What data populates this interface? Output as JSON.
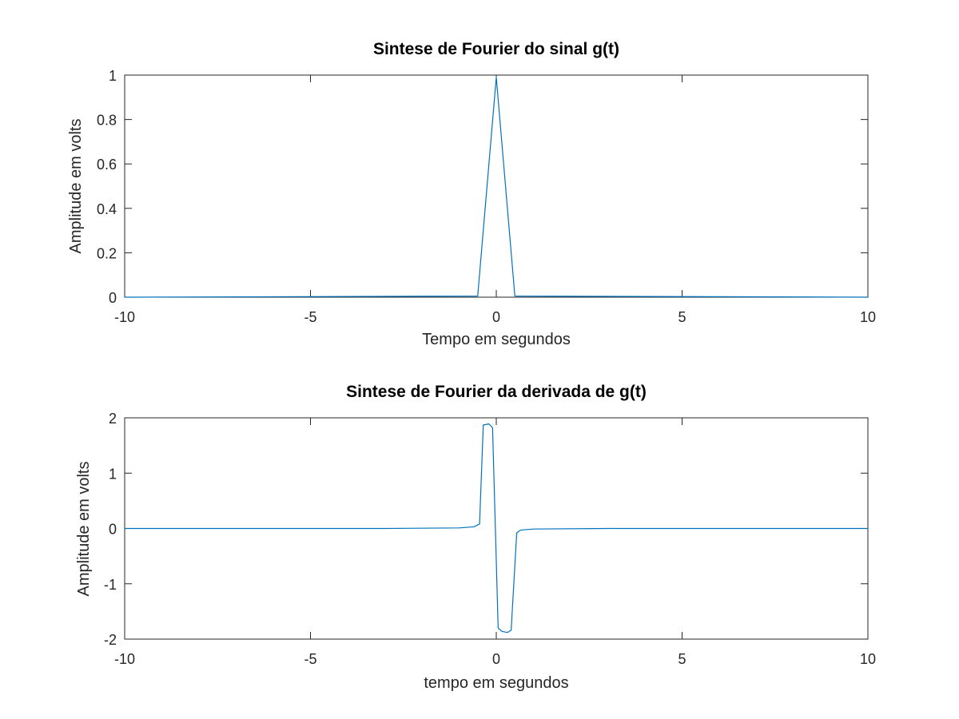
{
  "colors": {
    "line": "#0072BD",
    "axes": "#262626",
    "background": "#ffffff"
  },
  "chart_data": [
    {
      "type": "line",
      "title": "Sintese de Fourier do sinal g(t)",
      "xlabel": "Tempo em segundos",
      "ylabel": "Amplitude em  volts",
      "xlim": [
        -10,
        10
      ],
      "ylim": [
        0,
        1
      ],
      "xticks": [
        -10,
        -5,
        0,
        5,
        10
      ],
      "yticks": [
        0,
        0.2,
        0.4,
        0.6,
        0.8,
        1
      ],
      "xticklabels": [
        "-10",
        "-5",
        "0",
        "5",
        "10"
      ],
      "yticklabels": [
        "0",
        "0.2",
        "0.4",
        "0.6",
        "0.8",
        "1"
      ],
      "grid": false,
      "series": [
        {
          "x": [
            -10,
            -0.5,
            0,
            0.5,
            10
          ],
          "y": [
            0,
            0.005,
            0.99,
            0.005,
            0
          ]
        }
      ]
    },
    {
      "type": "line",
      "title": "Sintese de Fourier da derivada de g(t)",
      "xlabel": "tempo em segundos",
      "ylabel": "Amplitude em  volts",
      "xlim": [
        -10,
        10
      ],
      "ylim": [
        -2,
        2
      ],
      "xticks": [
        -10,
        -5,
        0,
        5,
        10
      ],
      "yticks": [
        -2,
        -1,
        0,
        1,
        2
      ],
      "xticklabels": [
        "-10",
        "-5",
        "0",
        "5",
        "10"
      ],
      "yticklabels": [
        "-2",
        "-1",
        "0",
        "1",
        "2"
      ],
      "grid": false,
      "series": [
        {
          "x": [
            -10,
            -3,
            -1,
            -0.6,
            -0.45,
            -0.35,
            -0.2,
            -0.1,
            0.05,
            0.15,
            0.3,
            0.4,
            0.55,
            0.65,
            1,
            3,
            10
          ],
          "y": [
            0,
            0,
            0.01,
            0.03,
            0.08,
            1.87,
            1.89,
            1.82,
            -1.8,
            -1.86,
            -1.88,
            -1.84,
            -0.08,
            -0.03,
            -0.01,
            0,
            0
          ]
        }
      ]
    }
  ]
}
